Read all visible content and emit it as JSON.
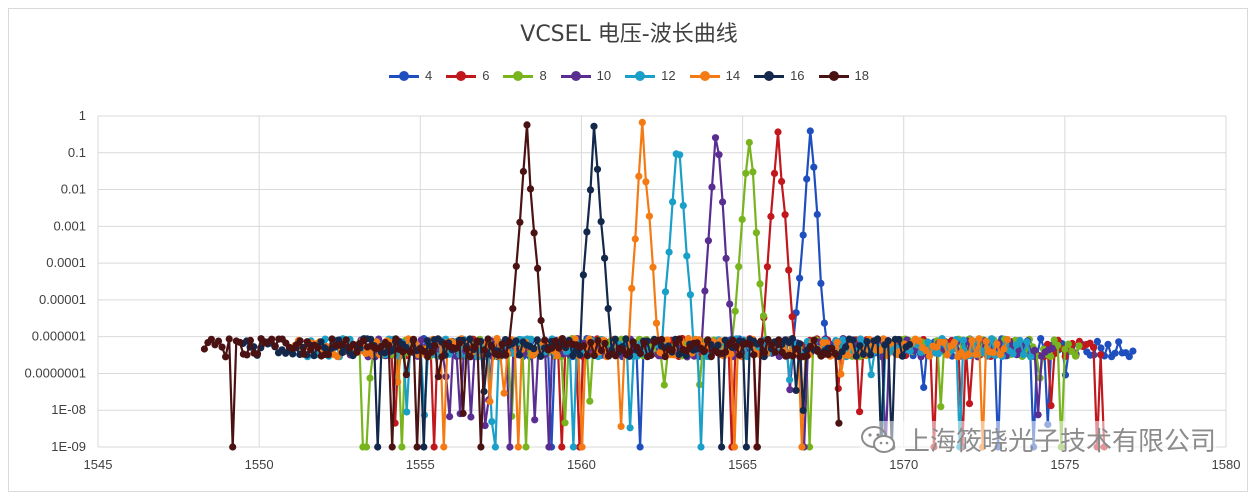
{
  "chart_data": {
    "type": "line",
    "title": "VCSEL 电压-波长曲线",
    "xlabel": "",
    "ylabel": "",
    "xlim": [
      1545,
      1580
    ],
    "ylim": [
      1e-09,
      1
    ],
    "yscale": "log",
    "x_ticks": [
      "1545",
      "1550",
      "1555",
      "1560",
      "1565",
      "1570",
      "1575",
      "1580"
    ],
    "y_ticks": [
      "1",
      "0.1",
      "0.01",
      "0.001",
      "0.0001",
      "0.00001",
      "0.000001",
      "0.0000001",
      "1E-08",
      "1E-09"
    ],
    "grid": true,
    "legend_position": "top",
    "series": [
      {
        "name": "4",
        "color": "#1f4fbf",
        "peak_x": 1567.1,
        "peak_y": 0.45,
        "range": [
          1555.0,
          1577.2
        ]
      },
      {
        "name": "6",
        "color": "#c0181d",
        "peak_x": 1566.1,
        "peak_y": 0.45,
        "range": [
          1554.0,
          1576.3
        ]
      },
      {
        "name": "8",
        "color": "#78b41e",
        "peak_x": 1565.2,
        "peak_y": 0.45,
        "range": [
          1553.0,
          1575.5
        ]
      },
      {
        "name": "10",
        "color": "#5a2d91",
        "peak_x": 1564.2,
        "peak_y": 0.45,
        "range": [
          1552.5,
          1574.7
        ]
      },
      {
        "name": "12",
        "color": "#1aa0c8",
        "peak_x": 1563.0,
        "peak_y": 0.45,
        "range": [
          1551.5,
          1574.0
        ]
      },
      {
        "name": "14",
        "color": "#f47b14",
        "peak_x": 1561.9,
        "peak_y": 0.45,
        "range": [
          1551.0,
          1573.3
        ]
      },
      {
        "name": "16",
        "color": "#14284b",
        "peak_x": 1560.4,
        "peak_y": 0.45,
        "range": [
          1549.5,
          1570.2
        ]
      },
      {
        "name": "18",
        "color": "#4a1212",
        "peak_x": 1558.3,
        "peak_y": 0.38,
        "range": [
          1548.3,
          1568.0
        ]
      }
    ]
  },
  "watermark": {
    "text": "上海筱晓光子技术有限公司"
  }
}
